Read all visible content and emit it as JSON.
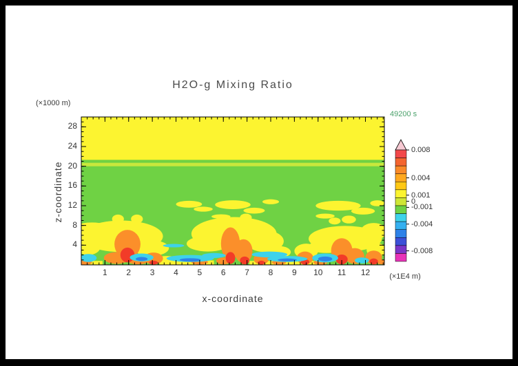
{
  "title": "H2O-g Mixing Ratio",
  "time_label": "49200 s",
  "y_unit_label": "(×1000 m)",
  "x_unit_label": "(×1E4 m)",
  "x_axis_label": "x-coordinate",
  "y_axis_label": "z-coordinate",
  "colors": {
    "title_text": "#4a4a4a",
    "axis_text": "#333333",
    "time_text": "#4aa06a",
    "frame": "#000000"
  },
  "chart_data": {
    "type": "heatmap",
    "title": "H2O-g Mixing Ratio",
    "xlabel": "x-coordinate",
    "ylabel": "z-coordinate",
    "x_unit": "x 1E4 m",
    "z_unit": "x 1000 m",
    "time": "49200 s",
    "x_range": [
      0,
      12.8
    ],
    "z_range": [
      0,
      30
    ],
    "x_ticks": [
      1,
      2,
      3,
      4,
      5,
      6,
      7,
      8,
      9,
      10,
      11,
      12
    ],
    "z_ticks": [
      4,
      8,
      12,
      16,
      20,
      24,
      28
    ],
    "x_minor_step": 0.25,
    "z_minor_step": 1,
    "grid": false,
    "background": "G",
    "palette": {
      "Y": "#fcf430",
      "G": "#6fd244",
      "L": "#c8e83c",
      "O": "#fb8f2a",
      "R": "#f23b28",
      "C": "#3ed2ea",
      "B": "#2e82e8"
    },
    "regions": [
      {
        "s": "r",
        "x": 0,
        "z": 21.3,
        "w": 12.8,
        "h": 8.7,
        "c": "Y"
      },
      {
        "s": "r",
        "x": 0,
        "z": 20.0,
        "w": 12.8,
        "h": 0.7,
        "c": "L"
      },
      {
        "s": "r",
        "x": 3.3,
        "z": 0,
        "w": 2.3,
        "h": 0.9,
        "c": "Y"
      },
      {
        "s": "r",
        "x": 7.1,
        "z": 0,
        "w": 3.1,
        "h": 0.8,
        "c": "Y"
      },
      {
        "s": "r",
        "x": 0,
        "z": 0,
        "w": 0.9,
        "h": 0.8,
        "c": "Y"
      },
      {
        "s": "e",
        "x": 1.7,
        "z": 5.8,
        "rx": 1.75,
        "rz": 3.2,
        "c": "Y"
      },
      {
        "s": "e",
        "x": 0.45,
        "z": 7.3,
        "rx": 0.8,
        "rz": 1.3,
        "c": "Y"
      },
      {
        "s": "e",
        "x": 0.3,
        "z": 3.6,
        "rx": 0.5,
        "rz": 1.6,
        "c": "Y"
      },
      {
        "s": "e",
        "x": 2.95,
        "z": 3.4,
        "rx": 0.75,
        "rz": 1.6,
        "c": "Y"
      },
      {
        "s": "e",
        "x": 5.35,
        "z": 4.3,
        "rx": 0.9,
        "rz": 1.6,
        "c": "Y"
      },
      {
        "s": "e",
        "x": 6.45,
        "z": 6.3,
        "rx": 1.8,
        "rz": 3.4,
        "c": "Y"
      },
      {
        "s": "e",
        "x": 7.75,
        "z": 4.8,
        "rx": 0.8,
        "rz": 2.2,
        "c": "Y"
      },
      {
        "s": "e",
        "x": 8.35,
        "z": 2.6,
        "rx": 0.5,
        "rz": 1.2,
        "c": "Y"
      },
      {
        "s": "e",
        "x": 9.5,
        "z": 2.8,
        "rx": 0.5,
        "rz": 1.5,
        "c": "Y"
      },
      {
        "s": "e",
        "x": 10.35,
        "z": 3.7,
        "rx": 0.75,
        "rz": 1.3,
        "c": "Y"
      },
      {
        "s": "e",
        "x": 11.15,
        "z": 5.3,
        "rx": 1.55,
        "rz": 2.6,
        "c": "Y"
      },
      {
        "s": "e",
        "x": 12.35,
        "z": 6.8,
        "rx": 0.55,
        "rz": 1.7,
        "c": "Y"
      },
      {
        "s": "e",
        "x": 12.45,
        "z": 3.0,
        "rx": 0.4,
        "rz": 1.5,
        "c": "Y"
      },
      {
        "s": "e",
        "x": 1.55,
        "z": 9.3,
        "rx": 0.25,
        "rz": 0.9,
        "c": "Y"
      },
      {
        "s": "e",
        "x": 2.35,
        "z": 9.3,
        "rx": 0.25,
        "rz": 0.9,
        "c": "Y"
      },
      {
        "s": "e",
        "x": 4.55,
        "z": 12.3,
        "rx": 0.55,
        "rz": 0.7,
        "c": "Y"
      },
      {
        "s": "e",
        "x": 5.15,
        "z": 11.3,
        "rx": 0.4,
        "rz": 0.5,
        "c": "Y"
      },
      {
        "s": "e",
        "x": 5.9,
        "z": 9.8,
        "rx": 0.4,
        "rz": 0.45,
        "c": "Y"
      },
      {
        "s": "e",
        "x": 6.4,
        "z": 12.2,
        "rx": 0.75,
        "rz": 0.9,
        "c": "Y"
      },
      {
        "s": "e",
        "x": 6.95,
        "z": 9.6,
        "rx": 0.25,
        "rz": 0.8,
        "c": "Y"
      },
      {
        "s": "e",
        "x": 7.3,
        "z": 11.0,
        "rx": 0.45,
        "rz": 0.6,
        "c": "Y"
      },
      {
        "s": "e",
        "x": 8.0,
        "z": 12.8,
        "rx": 0.35,
        "rz": 0.5,
        "c": "Y"
      },
      {
        "s": "e",
        "x": 10.85,
        "z": 12.0,
        "rx": 0.95,
        "rz": 1.0,
        "c": "Y"
      },
      {
        "s": "e",
        "x": 11.9,
        "z": 10.9,
        "rx": 0.5,
        "rz": 0.7,
        "c": "Y"
      },
      {
        "s": "e",
        "x": 10.3,
        "z": 9.9,
        "rx": 0.4,
        "rz": 0.5,
        "c": "Y"
      },
      {
        "s": "e",
        "x": 10.7,
        "z": 8.9,
        "rx": 0.25,
        "rz": 0.7,
        "c": "Y"
      },
      {
        "s": "e",
        "x": 11.3,
        "z": 9.2,
        "rx": 0.3,
        "rz": 0.8,
        "c": "Y"
      },
      {
        "s": "e",
        "x": 12.5,
        "z": 12.5,
        "rx": 0.3,
        "rz": 0.6,
        "c": "Y"
      },
      {
        "s": "e",
        "x": 3.6,
        "z": 1.0,
        "rx": 0.5,
        "rz": 0.8,
        "c": "Y"
      },
      {
        "s": "e",
        "x": 1.95,
        "z": 4.2,
        "rx": 0.55,
        "rz": 2.9,
        "c": "O"
      },
      {
        "s": "e",
        "x": 1.5,
        "z": 1.4,
        "rx": 0.55,
        "rz": 1.2,
        "c": "O"
      },
      {
        "s": "e",
        "x": 2.4,
        "z": 0.7,
        "rx": 0.4,
        "rz": 0.6,
        "c": "O"
      },
      {
        "s": "e",
        "x": 3.05,
        "z": 1.3,
        "rx": 0.4,
        "rz": 1.2,
        "c": "O"
      },
      {
        "s": "e",
        "x": 5.0,
        "z": 0.55,
        "rx": 0.35,
        "rz": 0.5,
        "c": "O"
      },
      {
        "s": "e",
        "x": 6.3,
        "z": 4.3,
        "rx": 0.4,
        "rz": 3.3,
        "c": "O"
      },
      {
        "s": "e",
        "x": 6.85,
        "z": 2.8,
        "rx": 0.38,
        "rz": 2.4,
        "c": "O"
      },
      {
        "s": "e",
        "x": 6.0,
        "z": 0.8,
        "rx": 0.3,
        "rz": 0.7,
        "c": "O"
      },
      {
        "s": "e",
        "x": 7.6,
        "z": 1.2,
        "rx": 0.32,
        "rz": 1.1,
        "c": "O"
      },
      {
        "s": "e",
        "x": 8.35,
        "z": 0.5,
        "rx": 0.3,
        "rz": 0.45,
        "c": "O"
      },
      {
        "s": "e",
        "x": 9.45,
        "z": 1.4,
        "rx": 0.35,
        "rz": 1.3,
        "c": "O"
      },
      {
        "s": "e",
        "x": 11.0,
        "z": 2.9,
        "rx": 0.45,
        "rz": 2.5,
        "c": "O"
      },
      {
        "s": "e",
        "x": 11.55,
        "z": 1.8,
        "rx": 0.4,
        "rz": 1.6,
        "c": "O"
      },
      {
        "s": "e",
        "x": 12.35,
        "z": 1.5,
        "rx": 0.35,
        "rz": 1.4,
        "c": "O"
      },
      {
        "s": "e",
        "x": 10.1,
        "z": 0.5,
        "rx": 0.3,
        "rz": 0.45,
        "c": "O"
      },
      {
        "s": "e",
        "x": 12.7,
        "z": 0.6,
        "rx": 0.25,
        "rz": 0.5,
        "c": "O"
      },
      {
        "s": "e",
        "x": 0.15,
        "z": 0.5,
        "rx": 0.3,
        "rz": 0.5,
        "c": "O"
      },
      {
        "s": "e",
        "x": 1.95,
        "z": 2.0,
        "rx": 0.3,
        "rz": 1.5,
        "c": "R"
      },
      {
        "s": "e",
        "x": 6.3,
        "z": 1.4,
        "rx": 0.2,
        "rz": 1.2,
        "c": "R"
      },
      {
        "s": "e",
        "x": 6.9,
        "z": 0.9,
        "rx": 0.2,
        "rz": 0.8,
        "c": "R"
      },
      {
        "s": "e",
        "x": 11.0,
        "z": 1.1,
        "rx": 0.25,
        "rz": 1.0,
        "c": "R"
      },
      {
        "s": "e",
        "x": 9.45,
        "z": 0.6,
        "rx": 0.18,
        "rz": 0.55,
        "c": "R"
      },
      {
        "s": "e",
        "x": 12.35,
        "z": 0.7,
        "rx": 0.18,
        "rz": 0.6,
        "c": "R"
      },
      {
        "s": "e",
        "x": 3.05,
        "z": 0.45,
        "rx": 0.18,
        "rz": 0.4,
        "c": "R"
      },
      {
        "s": "e",
        "x": 7.6,
        "z": 0.45,
        "rx": 0.15,
        "rz": 0.4,
        "c": "R"
      },
      {
        "s": "e",
        "x": 0.3,
        "z": 1.4,
        "rx": 0.35,
        "rz": 0.8,
        "c": "C"
      },
      {
        "s": "e",
        "x": 2.55,
        "z": 1.5,
        "rx": 0.5,
        "rz": 0.8,
        "c": "C"
      },
      {
        "s": "e",
        "x": 4.6,
        "z": 1.3,
        "rx": 1.0,
        "rz": 0.7,
        "c": "C"
      },
      {
        "s": "e",
        "x": 5.6,
        "z": 1.9,
        "rx": 0.5,
        "rz": 0.5,
        "c": "C"
      },
      {
        "s": "e",
        "x": 7.95,
        "z": 2.1,
        "rx": 0.75,
        "rz": 0.6,
        "c": "C"
      },
      {
        "s": "e",
        "x": 8.7,
        "z": 1.2,
        "rx": 0.85,
        "rz": 0.6,
        "c": "C"
      },
      {
        "s": "e",
        "x": 10.3,
        "z": 1.4,
        "rx": 0.55,
        "rz": 0.9,
        "c": "C"
      },
      {
        "s": "e",
        "x": 11.85,
        "z": 0.9,
        "rx": 0.3,
        "rz": 0.6,
        "c": "C"
      },
      {
        "s": "e",
        "x": 3.9,
        "z": 3.9,
        "rx": 0.45,
        "rz": 0.35,
        "c": "C"
      },
      {
        "s": "e",
        "x": 4.6,
        "z": 1.0,
        "rx": 0.45,
        "rz": 0.35,
        "c": "B"
      },
      {
        "s": "e",
        "x": 8.7,
        "z": 1.0,
        "rx": 0.4,
        "rz": 0.3,
        "c": "B"
      },
      {
        "s": "e",
        "x": 10.3,
        "z": 1.2,
        "rx": 0.3,
        "rz": 0.5,
        "c": "B"
      },
      {
        "s": "e",
        "x": 2.55,
        "z": 1.2,
        "rx": 0.25,
        "rz": 0.4,
        "c": "B"
      }
    ],
    "colorbar": {
      "cap_color": "#f6c9d2",
      "segment_colors": [
        "#f2484a",
        "#f4652f",
        "#fa8a28",
        "#ffa81e",
        "#ffc814",
        "#fcf430",
        "#cfe636",
        "#6fd244",
        "#3ed2ea",
        "#35b0f0",
        "#2e82e8",
        "#3c50d8",
        "#7a35c8",
        "#e833b8"
      ],
      "labels": [
        {
          "text": "0.008",
          "pos": 0.0
        },
        {
          "text": "0.004",
          "pos": 0.25
        },
        {
          "text": "0.001",
          "pos": 0.405
        },
        {
          "text": "0",
          "pos": 0.46
        },
        {
          "text": "-0.001",
          "pos": 0.515
        },
        {
          "text": "-0.004",
          "pos": 0.665
        },
        {
          "text": "-0.008",
          "pos": 0.905
        }
      ]
    }
  }
}
